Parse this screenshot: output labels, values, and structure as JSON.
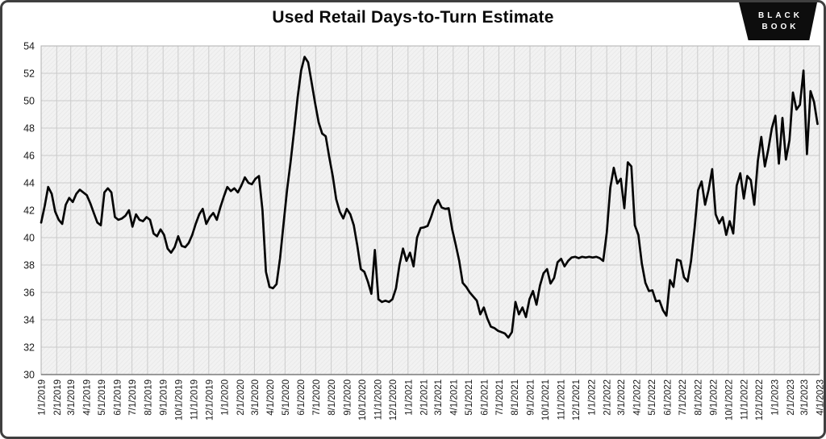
{
  "header": {
    "title_note": "title is bound from chart_data.title"
  },
  "logo": {
    "line1": "BLACK",
    "line2": "BOOK",
    "bg": "#0d0d0d",
    "fg": "#ffffff"
  },
  "frame": {
    "border_color": "#3f3f3f",
    "background": "#ffffff"
  },
  "chart_data": {
    "type": "line",
    "title": "Used Retail Days-to-Turn Estimate",
    "xlabel": "",
    "ylabel": "",
    "ylim": [
      30,
      54
    ],
    "y_ticks": [
      30,
      32,
      34,
      36,
      38,
      40,
      42,
      44,
      46,
      48,
      50,
      52,
      54
    ],
    "grid": true,
    "legend": "none",
    "plot_bg": "#f2f2f2",
    "hatch_color": "#e7e7e7",
    "grid_color": "#cbcbcb",
    "axis_line_color": "#7a7a7a",
    "plot_border_color": "#b0b0b0",
    "line_color": "#050505",
    "line_width": 2.7,
    "x_tick_labels": [
      "1/1/2019",
      "2/1/2019",
      "3/1/2019",
      "4/1/2019",
      "5/1/2019",
      "6/1/2019",
      "7/1/2019",
      "8/1/2019",
      "9/1/2019",
      "10/1/2019",
      "11/1/2019",
      "12/1/2019",
      "1/1/2020",
      "2/1/2020",
      "3/1/2020",
      "4/1/2020",
      "5/1/2020",
      "6/1/2020",
      "7/1/2020",
      "8/1/2020",
      "9/1/2020",
      "10/1/2020",
      "11/1/2020",
      "12/1/2020",
      "1/1/2021",
      "2/1/2021",
      "3/1/2021",
      "4/1/2021",
      "5/1/2021",
      "6/1/2021",
      "7/1/2021",
      "8/1/2021",
      "9/1/2021",
      "10/1/2021",
      "11/1/2021",
      "12/1/2021",
      "1/1/2022",
      "2/1/2022",
      "3/1/2022",
      "4/1/2022",
      "5/1/2022",
      "6/1/2022",
      "7/1/2022",
      "8/1/2022",
      "9/1/2022",
      "10/1/2022",
      "11/1/2022",
      "12/1/2022",
      "1/1/2023",
      "2/1/2023",
      "3/1/2023",
      "4/1/2023"
    ],
    "series": [
      {
        "name": "Used Retail Days-to-Turn Estimate",
        "cadence_days": 7,
        "start_date": "1/1/2019",
        "values": [
          41.1,
          42.3,
          43.7,
          43.2,
          41.9,
          41.3,
          41.0,
          42.4,
          42.9,
          42.6,
          43.2,
          43.5,
          43.3,
          43.1,
          42.5,
          41.8,
          41.1,
          40.9,
          43.3,
          43.6,
          43.3,
          41.5,
          41.3,
          41.4,
          41.6,
          42.0,
          40.8,
          41.7,
          41.3,
          41.2,
          41.5,
          41.3,
          40.3,
          40.1,
          40.6,
          40.2,
          39.2,
          38.9,
          39.3,
          40.1,
          39.4,
          39.3,
          39.6,
          40.2,
          41.0,
          41.7,
          42.1,
          41.0,
          41.5,
          41.8,
          41.3,
          42.2,
          43.0,
          43.7,
          43.4,
          43.6,
          43.3,
          43.8,
          44.4,
          44.0,
          43.9,
          44.3,
          44.5,
          42.0,
          37.5,
          36.4,
          36.3,
          36.6,
          38.5,
          41.0,
          43.5,
          45.5,
          47.8,
          50.2,
          52.2,
          53.2,
          52.8,
          51.3,
          49.8,
          48.4,
          47.6,
          47.4,
          45.9,
          44.5,
          42.8,
          41.9,
          41.4,
          42.1,
          41.7,
          40.9,
          39.4,
          37.7,
          37.5,
          36.8,
          35.9,
          39.1,
          35.5,
          35.3,
          35.4,
          35.3,
          35.5,
          36.3,
          38.0,
          39.2,
          38.3,
          38.9,
          37.9,
          40.0,
          40.7,
          40.75,
          40.85,
          41.5,
          42.3,
          42.75,
          42.2,
          42.1,
          42.15,
          40.6,
          39.5,
          38.3,
          36.7,
          36.4,
          36.0,
          35.7,
          35.4,
          34.4,
          34.9,
          34.1,
          33.5,
          33.4,
          33.2,
          33.1,
          33.0,
          32.7,
          33.1,
          35.3,
          34.4,
          34.9,
          34.2,
          35.5,
          36.1,
          35.1,
          36.5,
          37.4,
          37.7,
          36.65,
          37.05,
          38.2,
          38.45,
          37.9,
          38.3,
          38.55,
          38.6,
          38.5,
          38.6,
          38.55,
          38.6,
          38.55,
          38.6,
          38.5,
          38.3,
          40.35,
          43.65,
          45.1,
          43.95,
          44.3,
          42.15,
          45.5,
          45.2,
          40.9,
          40.2,
          38.1,
          36.7,
          36.1,
          36.15,
          35.35,
          35.4,
          34.7,
          34.3,
          36.9,
          36.4,
          38.4,
          38.3,
          37.1,
          36.8,
          38.3,
          40.7,
          43.45,
          44.1,
          42.4,
          43.5,
          45.0,
          41.7,
          41.05,
          41.5,
          40.2,
          41.2,
          40.3,
          43.8,
          44.7,
          42.85,
          44.5,
          44.2,
          42.4,
          45.6,
          47.35,
          45.2,
          46.45,
          48.0,
          48.9,
          45.4,
          48.75,
          45.7,
          47.1,
          50.6,
          49.35,
          49.7,
          52.2,
          46.1,
          50.7,
          49.9,
          48.3
        ]
      }
    ]
  }
}
